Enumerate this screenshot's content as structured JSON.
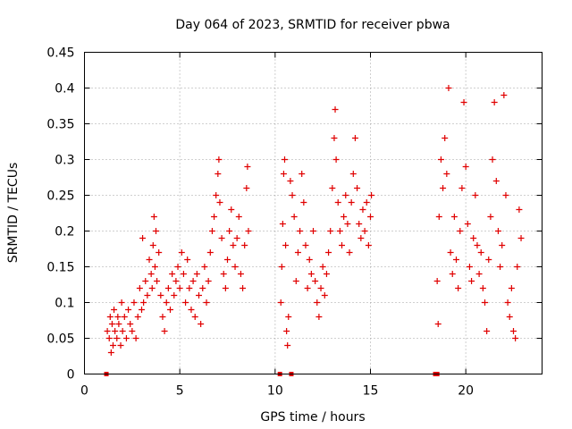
{
  "chart_data": {
    "type": "scatter",
    "title": "Day 064 of 2023, SRMTID for receiver pbwa",
    "xlabel": "GPS time / hours",
    "ylabel": "SRMTID / TECUs",
    "xlim": [
      0,
      24
    ],
    "ylim": [
      0,
      0.45
    ],
    "grid": true,
    "marker": "+",
    "marker_color": "#e00000",
    "x_ticks": [
      {
        "value": 0,
        "label": "0"
      },
      {
        "value": 5,
        "label": "5"
      },
      {
        "value": 10,
        "label": "10"
      },
      {
        "value": 15,
        "label": "15"
      },
      {
        "value": 20,
        "label": "20"
      }
    ],
    "y_ticks": [
      {
        "value": 0,
        "label": "0"
      },
      {
        "value": 0.05,
        "label": "0.05"
      },
      {
        "value": 0.1,
        "label": "0.1"
      },
      {
        "value": 0.15,
        "label": "0.15"
      },
      {
        "value": 0.2,
        "label": "0.2"
      },
      {
        "value": 0.25,
        "label": "0.25"
      },
      {
        "value": 0.3,
        "label": "0.3"
      },
      {
        "value": 0.35,
        "label": "0.35"
      },
      {
        "value": 0.4,
        "label": "0.4"
      },
      {
        "value": 0.45,
        "label": "0.45"
      }
    ],
    "zero_markers_x": [
      1.15,
      10.25,
      10.85,
      18.4,
      18.5
    ],
    "series": [
      {
        "name": "SRMTID",
        "points": [
          [
            1.2,
            0.06
          ],
          [
            1.3,
            0.05
          ],
          [
            1.35,
            0.08
          ],
          [
            1.4,
            0.03
          ],
          [
            1.45,
            0.07
          ],
          [
            1.5,
            0.04
          ],
          [
            1.55,
            0.09
          ],
          [
            1.6,
            0.06
          ],
          [
            1.7,
            0.05
          ],
          [
            1.75,
            0.08
          ],
          [
            1.8,
            0.07
          ],
          [
            1.9,
            0.04
          ],
          [
            1.95,
            0.1
          ],
          [
            2.0,
            0.06
          ],
          [
            2.1,
            0.08
          ],
          [
            2.2,
            0.05
          ],
          [
            2.3,
            0.09
          ],
          [
            2.4,
            0.07
          ],
          [
            2.5,
            0.06
          ],
          [
            2.6,
            0.1
          ],
          [
            2.7,
            0.05
          ],
          [
            2.8,
            0.08
          ],
          [
            2.9,
            0.12
          ],
          [
            3.0,
            0.09
          ],
          [
            3.05,
            0.19
          ],
          [
            3.1,
            0.1
          ],
          [
            3.2,
            0.13
          ],
          [
            3.3,
            0.11
          ],
          [
            3.4,
            0.16
          ],
          [
            3.5,
            0.14
          ],
          [
            3.55,
            0.12
          ],
          [
            3.6,
            0.18
          ],
          [
            3.65,
            0.22
          ],
          [
            3.7,
            0.15
          ],
          [
            3.75,
            0.2
          ],
          [
            3.8,
            0.13
          ],
          [
            3.9,
            0.17
          ],
          [
            4.0,
            0.11
          ],
          [
            4.1,
            0.08
          ],
          [
            4.2,
            0.06
          ],
          [
            4.3,
            0.1
          ],
          [
            4.4,
            0.12
          ],
          [
            4.5,
            0.09
          ],
          [
            4.6,
            0.14
          ],
          [
            4.7,
            0.11
          ],
          [
            4.8,
            0.13
          ],
          [
            4.9,
            0.15
          ],
          [
            5.0,
            0.12
          ],
          [
            5.1,
            0.17
          ],
          [
            5.2,
            0.14
          ],
          [
            5.3,
            0.1
          ],
          [
            5.4,
            0.16
          ],
          [
            5.5,
            0.12
          ],
          [
            5.6,
            0.09
          ],
          [
            5.7,
            0.13
          ],
          [
            5.8,
            0.08
          ],
          [
            5.9,
            0.14
          ],
          [
            6.0,
            0.11
          ],
          [
            6.1,
            0.07
          ],
          [
            6.2,
            0.12
          ],
          [
            6.3,
            0.15
          ],
          [
            6.4,
            0.1
          ],
          [
            6.5,
            0.13
          ],
          [
            6.6,
            0.17
          ],
          [
            6.7,
            0.2
          ],
          [
            6.8,
            0.22
          ],
          [
            6.9,
            0.25
          ],
          [
            7.0,
            0.28
          ],
          [
            7.05,
            0.3
          ],
          [
            7.1,
            0.24
          ],
          [
            7.2,
            0.19
          ],
          [
            7.3,
            0.14
          ],
          [
            7.4,
            0.12
          ],
          [
            7.5,
            0.16
          ],
          [
            7.6,
            0.2
          ],
          [
            7.7,
            0.23
          ],
          [
            7.8,
            0.18
          ],
          [
            7.9,
            0.15
          ],
          [
            8.0,
            0.19
          ],
          [
            8.1,
            0.22
          ],
          [
            8.2,
            0.14
          ],
          [
            8.3,
            0.12
          ],
          [
            8.4,
            0.18
          ],
          [
            8.5,
            0.26
          ],
          [
            8.55,
            0.29
          ],
          [
            8.6,
            0.2
          ],
          [
            10.3,
            0.1
          ],
          [
            10.35,
            0.15
          ],
          [
            10.4,
            0.21
          ],
          [
            10.45,
            0.28
          ],
          [
            10.5,
            0.3
          ],
          [
            10.55,
            0.18
          ],
          [
            10.6,
            0.06
          ],
          [
            10.65,
            0.04
          ],
          [
            10.7,
            0.08
          ],
          [
            10.8,
            0.27
          ],
          [
            10.9,
            0.25
          ],
          [
            11.0,
            0.22
          ],
          [
            11.1,
            0.13
          ],
          [
            11.2,
            0.17
          ],
          [
            11.3,
            0.2
          ],
          [
            11.4,
            0.28
          ],
          [
            11.5,
            0.24
          ],
          [
            11.6,
            0.18
          ],
          [
            11.7,
            0.12
          ],
          [
            11.8,
            0.16
          ],
          [
            11.9,
            0.14
          ],
          [
            12.0,
            0.2
          ],
          [
            12.1,
            0.13
          ],
          [
            12.2,
            0.1
          ],
          [
            12.3,
            0.08
          ],
          [
            12.4,
            0.12
          ],
          [
            12.5,
            0.15
          ],
          [
            12.6,
            0.11
          ],
          [
            12.7,
            0.14
          ],
          [
            12.8,
            0.17
          ],
          [
            12.9,
            0.2
          ],
          [
            13.0,
            0.26
          ],
          [
            13.1,
            0.33
          ],
          [
            13.15,
            0.37
          ],
          [
            13.2,
            0.3
          ],
          [
            13.3,
            0.24
          ],
          [
            13.4,
            0.2
          ],
          [
            13.5,
            0.18
          ],
          [
            13.6,
            0.22
          ],
          [
            13.7,
            0.25
          ],
          [
            13.8,
            0.21
          ],
          [
            13.9,
            0.17
          ],
          [
            14.0,
            0.24
          ],
          [
            14.1,
            0.28
          ],
          [
            14.2,
            0.33
          ],
          [
            14.3,
            0.26
          ],
          [
            14.4,
            0.21
          ],
          [
            14.5,
            0.19
          ],
          [
            14.6,
            0.23
          ],
          [
            14.7,
            0.2
          ],
          [
            14.8,
            0.24
          ],
          [
            14.9,
            0.18
          ],
          [
            15.0,
            0.22
          ],
          [
            15.05,
            0.25
          ],
          [
            18.5,
            0.13
          ],
          [
            18.55,
            0.07
          ],
          [
            18.6,
            0.22
          ],
          [
            18.7,
            0.3
          ],
          [
            18.8,
            0.26
          ],
          [
            18.9,
            0.33
          ],
          [
            19.0,
            0.28
          ],
          [
            19.1,
            0.4
          ],
          [
            19.2,
            0.17
          ],
          [
            19.3,
            0.14
          ],
          [
            19.4,
            0.22
          ],
          [
            19.5,
            0.16
          ],
          [
            19.6,
            0.12
          ],
          [
            19.7,
            0.2
          ],
          [
            19.8,
            0.26
          ],
          [
            19.9,
            0.38
          ],
          [
            20.0,
            0.29
          ],
          [
            20.1,
            0.21
          ],
          [
            20.2,
            0.15
          ],
          [
            20.3,
            0.13
          ],
          [
            20.4,
            0.19
          ],
          [
            20.5,
            0.25
          ],
          [
            20.6,
            0.18
          ],
          [
            20.7,
            0.14
          ],
          [
            20.8,
            0.17
          ],
          [
            20.9,
            0.12
          ],
          [
            21.0,
            0.1
          ],
          [
            21.1,
            0.06
          ],
          [
            21.2,
            0.16
          ],
          [
            21.3,
            0.22
          ],
          [
            21.4,
            0.3
          ],
          [
            21.5,
            0.38
          ],
          [
            21.6,
            0.27
          ],
          [
            21.7,
            0.2
          ],
          [
            21.8,
            0.15
          ],
          [
            21.9,
            0.18
          ],
          [
            22.0,
            0.39
          ],
          [
            22.1,
            0.25
          ],
          [
            22.2,
            0.1
          ],
          [
            22.3,
            0.08
          ],
          [
            22.4,
            0.12
          ],
          [
            22.5,
            0.06
          ],
          [
            22.6,
            0.05
          ],
          [
            22.7,
            0.15
          ],
          [
            22.8,
            0.23
          ],
          [
            22.9,
            0.19
          ]
        ]
      }
    ]
  }
}
